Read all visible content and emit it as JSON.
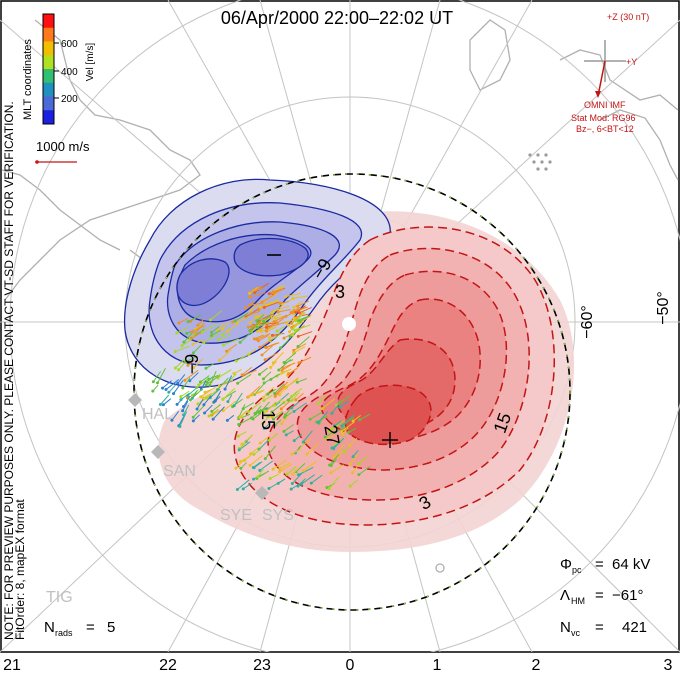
{
  "title": "06/Apr/2000  22:00–22:02  UT",
  "color_scale": {
    "label": "Vel [m/s]",
    "ticks": [
      "600",
      "400",
      "200"
    ],
    "colors": [
      "#ff1010",
      "#ff7a1a",
      "#f0c000",
      "#b0e020",
      "#30c070",
      "#2090c0",
      "#4a6ad8",
      "#1a20e0"
    ]
  },
  "coordinates_label": "MLT coordinates",
  "reference_vector": "1000 m/s",
  "imf_panel": {
    "z_label": "+Z (30 nT)",
    "y_label": "+Y",
    "source": "OMNI IMF",
    "stat_mod": "Stat Mod: RG96",
    "stat_cond": "Bz−, 6<BT<12"
  },
  "notes": {
    "preview": "NOTE: FOR PREVIEW PURPOSES ONLY. PLEASE CONTACT VT-SD STAFF FOR VERIFICATION.",
    "fitorder": "FitOrder: 8, mapEX format"
  },
  "lat_labels": [
    "−60°",
    "−50°"
  ],
  "mlt_labels": [
    "21",
    "22",
    "23",
    "0",
    "1",
    "2",
    "3"
  ],
  "contour_labels": {
    "neg_a": "−9",
    "neg_b": "−9",
    "pos_3": "3",
    "pos_15a": "15",
    "pos_27": "27",
    "pos_15b": "15",
    "pos_3b": "3"
  },
  "stations": [
    "HAL",
    "SAN",
    "SYE",
    "SYS",
    "TIG"
  ],
  "stats": {
    "phi_pc": "64 kV",
    "lambda_hm": "−61°",
    "n_vc": "421",
    "n_rads": "5"
  },
  "symbols": {
    "phi": "Φ",
    "phi_sub": "pc",
    "lambda": "Λ",
    "lambda_sub": "HM",
    "n": "N",
    "n_vc_sub": "vc",
    "n_rads_sub": "rads",
    "equals": "=",
    "plus": "+",
    "minus": "−"
  }
}
